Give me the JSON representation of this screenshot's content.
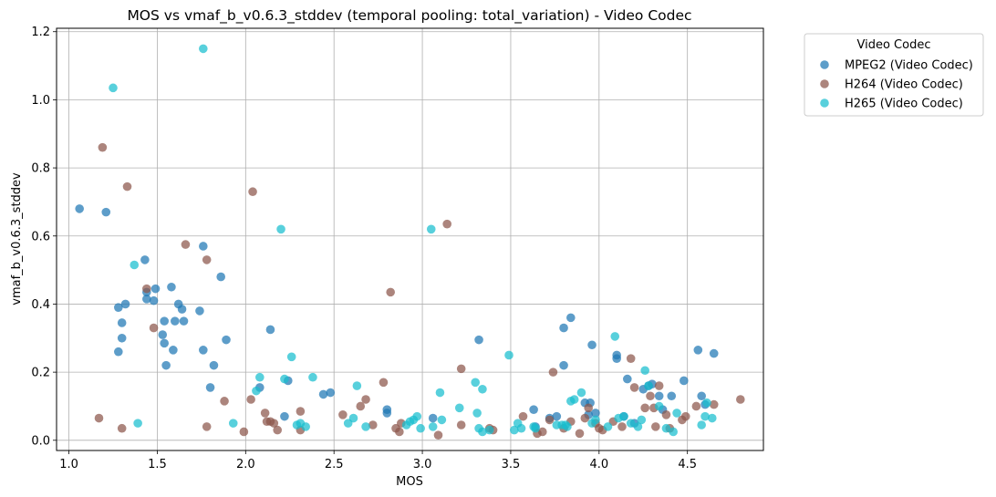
{
  "chart_data": {
    "type": "scatter",
    "title": "MOS vs vmaf_b_v0.6.3_stddev (temporal pooling: total_variation) - Video Codec",
    "xlabel": "MOS",
    "ylabel": "vmaf_b_v0.6.3_stddev",
    "xlim": [
      0.93,
      4.93
    ],
    "ylim": [
      -0.03,
      1.21
    ],
    "xticks": [
      "1.0",
      "1.5",
      "2.0",
      "2.5",
      "3.0",
      "3.5",
      "4.0",
      "4.5"
    ],
    "yticks": [
      "0.0",
      "0.2",
      "0.4",
      "0.6",
      "0.8",
      "1.0",
      "1.2"
    ],
    "grid": true,
    "legend": {
      "title": "Video Codec",
      "placement": "outside-top-right"
    },
    "series": [
      {
        "name": "MPEG2 (Video Codec)",
        "color": "#1f77b4",
        "points": [
          [
            1.06,
            0.68
          ],
          [
            1.21,
            0.67
          ],
          [
            1.28,
            0.39
          ],
          [
            1.32,
            0.4
          ],
          [
            1.3,
            0.345
          ],
          [
            1.3,
            0.3
          ],
          [
            1.28,
            0.26
          ],
          [
            1.43,
            0.53
          ],
          [
            1.44,
            0.435
          ],
          [
            1.44,
            0.415
          ],
          [
            1.48,
            0.41
          ],
          [
            1.49,
            0.445
          ],
          [
            1.53,
            0.31
          ],
          [
            1.54,
            0.35
          ],
          [
            1.54,
            0.285
          ],
          [
            1.55,
            0.22
          ],
          [
            1.58,
            0.45
          ],
          [
            1.59,
            0.265
          ],
          [
            1.6,
            0.35
          ],
          [
            1.62,
            0.4
          ],
          [
            1.64,
            0.385
          ],
          [
            1.65,
            0.35
          ],
          [
            1.74,
            0.38
          ],
          [
            1.76,
            0.57
          ],
          [
            1.76,
            0.265
          ],
          [
            1.8,
            0.155
          ],
          [
            1.82,
            0.22
          ],
          [
            1.86,
            0.48
          ],
          [
            1.89,
            0.295
          ],
          [
            2.08,
            0.155
          ],
          [
            2.14,
            0.325
          ],
          [
            2.22,
            0.07
          ],
          [
            2.24,
            0.175
          ],
          [
            2.44,
            0.135
          ],
          [
            2.48,
            0.14
          ],
          [
            2.8,
            0.09
          ],
          [
            2.8,
            0.08
          ],
          [
            3.06,
            0.065
          ],
          [
            3.32,
            0.295
          ],
          [
            3.63,
            0.09
          ],
          [
            3.64,
            0.04
          ],
          [
            3.72,
            0.065
          ],
          [
            3.76,
            0.07
          ],
          [
            3.8,
            0.33
          ],
          [
            3.8,
            0.22
          ],
          [
            3.84,
            0.36
          ],
          [
            3.92,
            0.11
          ],
          [
            3.94,
            0.075
          ],
          [
            3.95,
            0.11
          ],
          [
            3.96,
            0.28
          ],
          [
            3.98,
            0.08
          ],
          [
            4.1,
            0.25
          ],
          [
            4.1,
            0.24
          ],
          [
            4.14,
            0.07
          ],
          [
            4.16,
            0.18
          ],
          [
            4.2,
            0.05
          ],
          [
            4.25,
            0.15
          ],
          [
            4.28,
            0.16
          ],
          [
            4.3,
            0.165
          ],
          [
            4.34,
            0.13
          ],
          [
            4.36,
            0.09
          ],
          [
            4.41,
            0.13
          ],
          [
            4.48,
            0.175
          ],
          [
            4.56,
            0.265
          ],
          [
            4.58,
            0.13
          ],
          [
            4.6,
            0.105
          ],
          [
            4.65,
            0.255
          ]
        ]
      },
      {
        "name": "H264 (Video Codec)",
        "color": "#8c564b",
        "points": [
          [
            1.17,
            0.065
          ],
          [
            1.19,
            0.86
          ],
          [
            1.3,
            0.035
          ],
          [
            1.33,
            0.745
          ],
          [
            1.44,
            0.445
          ],
          [
            1.48,
            0.33
          ],
          [
            1.66,
            0.575
          ],
          [
            1.78,
            0.53
          ],
          [
            1.78,
            0.04
          ],
          [
            1.88,
            0.115
          ],
          [
            1.99,
            0.025
          ],
          [
            2.03,
            0.12
          ],
          [
            2.04,
            0.73
          ],
          [
            2.11,
            0.08
          ],
          [
            2.12,
            0.055
          ],
          [
            2.14,
            0.055
          ],
          [
            2.16,
            0.05
          ],
          [
            2.18,
            0.03
          ],
          [
            2.31,
            0.085
          ],
          [
            2.31,
            0.03
          ],
          [
            2.55,
            0.075
          ],
          [
            2.65,
            0.1
          ],
          [
            2.68,
            0.12
          ],
          [
            2.72,
            0.045
          ],
          [
            2.78,
            0.17
          ],
          [
            2.82,
            0.435
          ],
          [
            2.85,
            0.035
          ],
          [
            2.88,
            0.05
          ],
          [
            2.87,
            0.025
          ],
          [
            3.09,
            0.015
          ],
          [
            3.14,
            0.635
          ],
          [
            3.22,
            0.21
          ],
          [
            3.22,
            0.045
          ],
          [
            3.38,
            0.035
          ],
          [
            3.4,
            0.03
          ],
          [
            3.57,
            0.07
          ],
          [
            3.65,
            0.02
          ],
          [
            3.68,
            0.025
          ],
          [
            3.72,
            0.06
          ],
          [
            3.74,
            0.2
          ],
          [
            3.8,
            0.035
          ],
          [
            3.84,
            0.055
          ],
          [
            3.89,
            0.02
          ],
          [
            3.92,
            0.065
          ],
          [
            3.94,
            0.095
          ],
          [
            3.98,
            0.05
          ],
          [
            4.0,
            0.035
          ],
          [
            4.02,
            0.03
          ],
          [
            4.08,
            0.055
          ],
          [
            4.13,
            0.04
          ],
          [
            4.18,
            0.24
          ],
          [
            4.2,
            0.155
          ],
          [
            4.26,
            0.095
          ],
          [
            4.29,
            0.13
          ],
          [
            4.31,
            0.095
          ],
          [
            4.32,
            0.04
          ],
          [
            4.34,
            0.16
          ],
          [
            4.38,
            0.075
          ],
          [
            4.4,
            0.035
          ],
          [
            4.47,
            0.06
          ],
          [
            4.49,
            0.07
          ],
          [
            4.55,
            0.1
          ],
          [
            4.65,
            0.105
          ],
          [
            4.8,
            0.12
          ]
        ]
      },
      {
        "name": "H265 (Video Codec)",
        "color": "#17becf",
        "points": [
          [
            1.25,
            1.035
          ],
          [
            1.37,
            0.515
          ],
          [
            1.39,
            0.05
          ],
          [
            1.76,
            1.15
          ],
          [
            1.93,
            0.05
          ],
          [
            2.06,
            0.145
          ],
          [
            2.08,
            0.185
          ],
          [
            2.2,
            0.62
          ],
          [
            2.22,
            0.18
          ],
          [
            2.26,
            0.245
          ],
          [
            2.29,
            0.045
          ],
          [
            2.31,
            0.05
          ],
          [
            2.34,
            0.04
          ],
          [
            2.38,
            0.185
          ],
          [
            2.58,
            0.05
          ],
          [
            2.61,
            0.065
          ],
          [
            2.63,
            0.16
          ],
          [
            2.68,
            0.04
          ],
          [
            2.91,
            0.045
          ],
          [
            2.93,
            0.055
          ],
          [
            2.95,
            0.06
          ],
          [
            2.97,
            0.07
          ],
          [
            2.99,
            0.035
          ],
          [
            3.05,
            0.62
          ],
          [
            3.06,
            0.04
          ],
          [
            3.1,
            0.14
          ],
          [
            3.11,
            0.06
          ],
          [
            3.21,
            0.095
          ],
          [
            3.3,
            0.17
          ],
          [
            3.31,
            0.08
          ],
          [
            3.32,
            0.035
          ],
          [
            3.34,
            0.025
          ],
          [
            3.34,
            0.15
          ],
          [
            3.38,
            0.03
          ],
          [
            3.49,
            0.25
          ],
          [
            3.52,
            0.03
          ],
          [
            3.54,
            0.05
          ],
          [
            3.56,
            0.035
          ],
          [
            3.63,
            0.04
          ],
          [
            3.64,
            0.035
          ],
          [
            3.76,
            0.045
          ],
          [
            3.79,
            0.045
          ],
          [
            3.81,
            0.045
          ],
          [
            3.82,
            0.04
          ],
          [
            3.84,
            0.115
          ],
          [
            3.86,
            0.12
          ],
          [
            3.9,
            0.14
          ],
          [
            3.96,
            0.05
          ],
          [
            3.98,
            0.06
          ],
          [
            4.05,
            0.04
          ],
          [
            4.09,
            0.305
          ],
          [
            4.11,
            0.065
          ],
          [
            4.14,
            0.07
          ],
          [
            4.18,
            0.05
          ],
          [
            4.22,
            0.04
          ],
          [
            4.24,
            0.06
          ],
          [
            4.26,
            0.205
          ],
          [
            4.28,
            0.16
          ],
          [
            4.34,
            0.1
          ],
          [
            4.38,
            0.035
          ],
          [
            4.42,
            0.025
          ],
          [
            4.44,
            0.08
          ],
          [
            4.58,
            0.045
          ],
          [
            4.6,
            0.07
          ],
          [
            4.61,
            0.11
          ],
          [
            4.64,
            0.065
          ]
        ]
      }
    ]
  }
}
